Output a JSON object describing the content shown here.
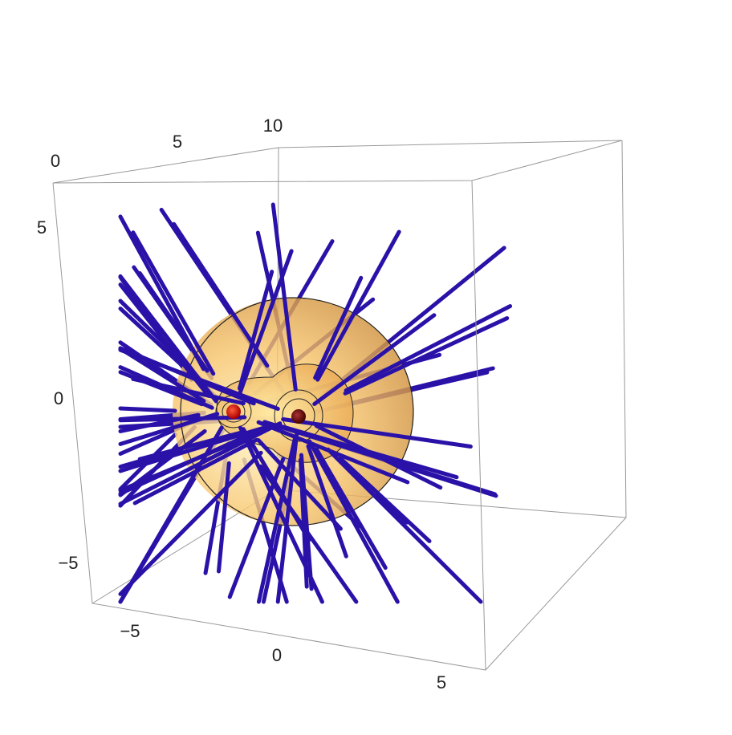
{
  "axes": {
    "top": {
      "ticks": [
        "0",
        "5",
        "10"
      ]
    },
    "left": {
      "ticks": [
        "5",
        "0",
        "−5"
      ]
    },
    "bottom": {
      "ticks": [
        "−5",
        "0",
        "5"
      ]
    }
  }
}
